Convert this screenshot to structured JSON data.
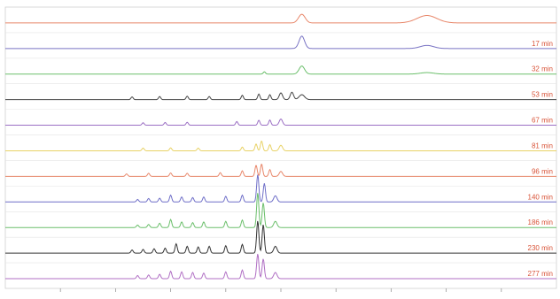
{
  "chart_data": {
    "type": "line",
    "title": "",
    "xlabel": "",
    "ylabel": "",
    "grid": false,
    "legend": "none",
    "x_ticks_count": 10,
    "series": [
      {
        "name": "",
        "label": "",
        "color": "#e8876a",
        "peaks": [
          [
            0.538,
            0.7,
            0.006
          ],
          [
            0.765,
            0.6,
            0.018
          ]
        ]
      },
      {
        "name": "",
        "label": "17 min",
        "color": "#7a74c4",
        "peaks": [
          [
            0.538,
            1.0,
            0.005
          ],
          [
            0.765,
            0.25,
            0.012
          ]
        ]
      },
      {
        "name": "",
        "label": "32 min",
        "color": "#6bbf6b",
        "peaks": [
          [
            0.47,
            0.18,
            0.002
          ],
          [
            0.538,
            0.65,
            0.005
          ],
          [
            0.765,
            0.12,
            0.012
          ]
        ]
      },
      {
        "name": "",
        "label": "53 min",
        "color": "#444444",
        "peaks": [
          [
            0.23,
            0.22,
            0.002
          ],
          [
            0.28,
            0.25,
            0.002
          ],
          [
            0.33,
            0.28,
            0.002
          ],
          [
            0.37,
            0.25,
            0.002
          ],
          [
            0.43,
            0.35,
            0.002
          ],
          [
            0.46,
            0.45,
            0.002
          ],
          [
            0.48,
            0.4,
            0.002
          ],
          [
            0.5,
            0.55,
            0.003
          ],
          [
            0.52,
            0.6,
            0.003
          ],
          [
            0.538,
            0.4,
            0.005
          ]
        ]
      },
      {
        "name": "",
        "label": "67 min",
        "color": "#9b6fc4",
        "peaks": [
          [
            0.25,
            0.2,
            0.002
          ],
          [
            0.29,
            0.22,
            0.002
          ],
          [
            0.33,
            0.24,
            0.002
          ],
          [
            0.42,
            0.3,
            0.002
          ],
          [
            0.46,
            0.4,
            0.002
          ],
          [
            0.48,
            0.42,
            0.002
          ],
          [
            0.5,
            0.5,
            0.003
          ]
        ]
      },
      {
        "name": "",
        "label": "81 min",
        "color": "#e8d266",
        "peaks": [
          [
            0.25,
            0.22,
            0.002
          ],
          [
            0.3,
            0.24,
            0.002
          ],
          [
            0.35,
            0.22,
            0.002
          ],
          [
            0.43,
            0.3,
            0.002
          ],
          [
            0.455,
            0.55,
            0.002
          ],
          [
            0.465,
            0.8,
            0.002
          ],
          [
            0.48,
            0.5,
            0.002
          ],
          [
            0.5,
            0.45,
            0.003
          ]
        ]
      },
      {
        "name": "",
        "label": "96 min",
        "color": "#e8876a",
        "peaks": [
          [
            0.22,
            0.2,
            0.002
          ],
          [
            0.26,
            0.25,
            0.002
          ],
          [
            0.3,
            0.28,
            0.002
          ],
          [
            0.33,
            0.25,
            0.002
          ],
          [
            0.39,
            0.3,
            0.002
          ],
          [
            0.43,
            0.45,
            0.002
          ],
          [
            0.455,
            0.9,
            0.002
          ],
          [
            0.465,
            1.0,
            0.002
          ],
          [
            0.48,
            0.55,
            0.002
          ],
          [
            0.5,
            0.4,
            0.003
          ]
        ]
      },
      {
        "name": "",
        "label": "140 min",
        "color": "#6f6fc8",
        "peaks": [
          [
            0.24,
            0.2,
            0.002
          ],
          [
            0.26,
            0.28,
            0.002
          ],
          [
            0.28,
            0.3,
            0.002
          ],
          [
            0.3,
            0.55,
            0.002
          ],
          [
            0.32,
            0.4,
            0.002
          ],
          [
            0.34,
            0.35,
            0.002
          ],
          [
            0.36,
            0.4,
            0.002
          ],
          [
            0.4,
            0.45,
            0.002
          ],
          [
            0.43,
            0.55,
            0.002
          ],
          [
            0.458,
            2.2,
            0.002
          ],
          [
            0.47,
            1.5,
            0.002
          ],
          [
            0.49,
            0.5,
            0.003
          ]
        ]
      },
      {
        "name": "",
        "label": "186 min",
        "color": "#6bbf6b",
        "peaks": [
          [
            0.24,
            0.2,
            0.002
          ],
          [
            0.26,
            0.25,
            0.002
          ],
          [
            0.28,
            0.35,
            0.002
          ],
          [
            0.3,
            0.65,
            0.002
          ],
          [
            0.32,
            0.45,
            0.002
          ],
          [
            0.34,
            0.4,
            0.002
          ],
          [
            0.36,
            0.45,
            0.002
          ],
          [
            0.4,
            0.5,
            0.002
          ],
          [
            0.43,
            0.6,
            0.002
          ],
          [
            0.458,
            2.8,
            0.002
          ],
          [
            0.468,
            2.0,
            0.002
          ],
          [
            0.49,
            0.5,
            0.003
          ]
        ]
      },
      {
        "name": "",
        "label": "230 min",
        "color": "#333333",
        "peaks": [
          [
            0.23,
            0.25,
            0.002
          ],
          [
            0.25,
            0.3,
            0.002
          ],
          [
            0.27,
            0.35,
            0.002
          ],
          [
            0.29,
            0.4,
            0.002
          ],
          [
            0.31,
            0.75,
            0.002
          ],
          [
            0.33,
            0.55,
            0.002
          ],
          [
            0.35,
            0.5,
            0.002
          ],
          [
            0.37,
            0.55,
            0.002
          ],
          [
            0.4,
            0.6,
            0.002
          ],
          [
            0.43,
            0.7,
            0.002
          ],
          [
            0.458,
            2.6,
            0.002
          ],
          [
            0.468,
            2.3,
            0.002
          ],
          [
            0.49,
            0.55,
            0.003
          ]
        ]
      },
      {
        "name": "",
        "label": "277 min",
        "color": "#b06fc4",
        "peaks": [
          [
            0.24,
            0.25,
            0.002
          ],
          [
            0.26,
            0.3,
            0.002
          ],
          [
            0.28,
            0.35,
            0.002
          ],
          [
            0.3,
            0.6,
            0.002
          ],
          [
            0.32,
            0.55,
            0.002
          ],
          [
            0.34,
            0.5,
            0.002
          ],
          [
            0.36,
            0.45,
            0.002
          ],
          [
            0.4,
            0.55,
            0.002
          ],
          [
            0.43,
            0.7,
            0.002
          ],
          [
            0.458,
            2.0,
            0.002
          ],
          [
            0.468,
            1.6,
            0.002
          ],
          [
            0.49,
            0.5,
            0.003
          ]
        ]
      }
    ]
  }
}
